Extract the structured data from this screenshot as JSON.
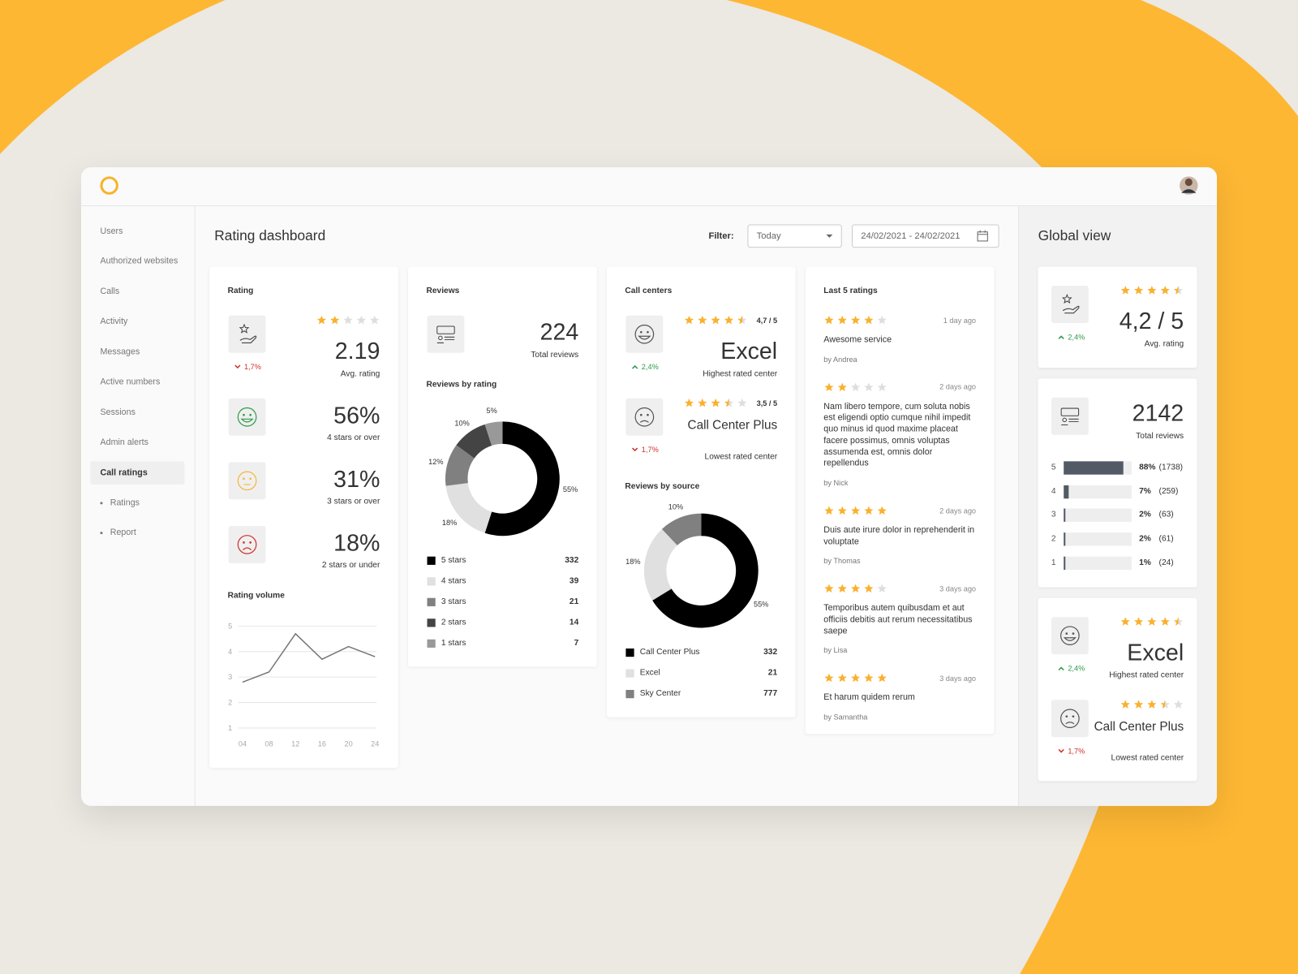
{
  "sidebar": {
    "items": [
      "Users",
      "Authorized websites",
      "Calls",
      "Activity",
      "Messages",
      "Active numbers",
      "Sessions",
      "Admin alerts",
      "Call ratings"
    ],
    "active": 8,
    "subitems": [
      "Ratings",
      "Report"
    ]
  },
  "page_title": "Rating dashboard",
  "filter": {
    "label": "Filter:",
    "period": "Today",
    "date_range": "24/02/2021 - 24/02/2021"
  },
  "rating_card": {
    "title": "Rating",
    "stars": 2,
    "value": 2.19,
    "caption": "Avg. rating",
    "trend": {
      "text": "1,7%",
      "direction": "down"
    },
    "shares": [
      {
        "value": "56%",
        "caption": "4 stars or over"
      },
      {
        "value": "31%",
        "caption": "3 stars or over"
      },
      {
        "value": "18%",
        "caption": "2 stars or under"
      }
    ]
  },
  "reviews_card": {
    "title": "Reviews",
    "total": 224,
    "caption": "Total reviews"
  },
  "call_centers_card": {
    "title": "Call centers",
    "centers": [
      {
        "stars": 4.5,
        "score": "4,7 / 5",
        "name": "Excel",
        "caption": "Highest rated center",
        "trend": {
          "text": "2,4%",
          "direction": "up"
        }
      },
      {
        "stars": 3.5,
        "score": "3,5 / 5",
        "name": "Call Center Plus",
        "caption": "Lowest rated center",
        "trend": {
          "text": "1,7%",
          "direction": "down"
        }
      }
    ]
  },
  "last_ratings": {
    "title": "Last 5 ratings",
    "items": [
      {
        "stars": 4,
        "time": "1 day ago",
        "text": "Awesome service",
        "author": "by Andrea"
      },
      {
        "stars": 2,
        "time": "2 days ago",
        "text": "Nam libero tempore, cum soluta nobis est eligendi optio cumque nihil impedit quo minus id quod maxime placeat facere possimus, omnis voluptas assumenda est, omnis dolor repellendus",
        "author": "by Nick"
      },
      {
        "stars": 5,
        "time": "2 days ago",
        "text": "Duis aute irure dolor in reprehenderit in voluptate",
        "author": "by Thomas"
      },
      {
        "stars": 4,
        "time": "3 days ago",
        "text": "Temporibus autem quibusdam et aut officiis debitis aut rerum necessitatibus saepe",
        "author": "by Lisa"
      },
      {
        "stars": 5,
        "time": "3 days ago",
        "text": "Et harum quidem rerum",
        "author": "by Samantha"
      }
    ]
  },
  "global_view": {
    "title": "Global view",
    "rating": {
      "stars": 4.5,
      "value": "4,2 / 5",
      "caption": "Avg. rating",
      "trend": {
        "text": "2,4%",
        "direction": "up"
      }
    },
    "reviews": {
      "total": 2142,
      "caption": "Total reviews",
      "distribution": {
        "levels": [
          5,
          4,
          3,
          2,
          1
        ],
        "values": [
          88,
          7,
          2,
          2,
          1
        ],
        "value_labels": [
          "88%",
          "7%",
          "2%",
          "2%",
          "1%"
        ],
        "count_labels": [
          "(1738)",
          "(259)",
          "(63)",
          "(61)",
          "(24)"
        ],
        "xlim": [
          0,
          100
        ],
        "color": "#525a66"
      }
    },
    "centers": [
      {
        "stars": 4.5,
        "name": "Excel",
        "caption": "Highest rated center",
        "trend": {
          "text": "2,4%",
          "direction": "up"
        }
      },
      {
        "stars": 3.5,
        "name": "Call Center Plus",
        "caption": "Lowest rated center",
        "trend": {
          "text": "1,7%",
          "direction": "down"
        }
      }
    ]
  },
  "chart_data": [
    {
      "type": "line",
      "title": "Rating volume",
      "categories": [
        "04",
        "08",
        "12",
        "16",
        "20",
        "24"
      ],
      "values": [
        2.8,
        3.2,
        4.7,
        3.7,
        4.2,
        3.8
      ],
      "ylim": [
        1,
        5
      ],
      "yticks": [
        1,
        2,
        3,
        4,
        5
      ],
      "color": "#777777",
      "grid": true
    },
    {
      "type": "pie",
      "title": "Reviews by rating",
      "categories": [
        "5 stars",
        "4 stars",
        "3 stars",
        "2 stars",
        "1 stars"
      ],
      "values": [
        55,
        18,
        12,
        10,
        5
      ],
      "value_labels": [
        "55%",
        "18%",
        "12%",
        "10%",
        "5%"
      ],
      "counts": [
        332,
        39,
        21,
        14,
        7
      ],
      "colors": [
        "#000000",
        "#e0e0e0",
        "#808080",
        "#444444",
        "#999999"
      ]
    },
    {
      "type": "pie",
      "title": "Reviews by source",
      "categories": [
        "Call Center Plus",
        "Excel",
        "Sky Center"
      ],
      "values": [
        55,
        18,
        10
      ],
      "value_labels": [
        "55%",
        "18%",
        "10%"
      ],
      "counts": [
        332,
        21,
        777
      ],
      "colors": [
        "#000000",
        "#e0e0e0",
        "#808080"
      ]
    }
  ]
}
